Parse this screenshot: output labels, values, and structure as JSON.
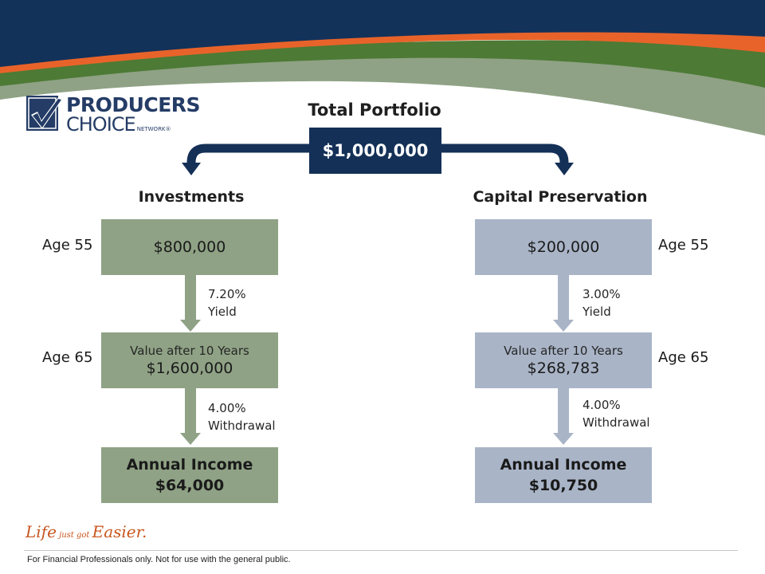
{
  "header": {
    "colors": {
      "navy": "#12325a",
      "orange": "#e8632a",
      "green": "#4d7a35",
      "sage": "#8fa285"
    }
  },
  "logo": {
    "line1": "PRODUCERS",
    "line2": "CHOICE",
    "line3": "NETWORK®"
  },
  "diagram": {
    "total_title": "Total Portfolio",
    "total_value": "$1,000,000",
    "investments": {
      "title": "Investments",
      "age_start": "Age 55",
      "start_value": "$800,000",
      "yield_rate": "7.20%",
      "yield_label": "Yield",
      "age_end": "Age 65",
      "after_label": "Value after 10 Years",
      "after_value": "$1,600,000",
      "withdrawal_rate": "4.00%",
      "withdrawal_label": "Withdrawal",
      "income_label": "Annual Income",
      "income_value": "$64,000"
    },
    "capital": {
      "title": "Capital Preservation",
      "age_start": "Age 55",
      "start_value": "$200,000",
      "yield_rate": "3.00%",
      "yield_label": "Yield",
      "age_end": "Age 65",
      "after_label": "Value after 10 Years",
      "after_value": "$268,783",
      "withdrawal_rate": "4.00%",
      "withdrawal_label": "Withdrawal",
      "income_label": "Annual Income",
      "income_value": "$10,750"
    }
  },
  "tagline": {
    "part1": "Life",
    "part2": " just got ",
    "part3": "Easier."
  },
  "footer": {
    "disclaimer": "For Financial Professionals only. Not for use with the general public."
  }
}
